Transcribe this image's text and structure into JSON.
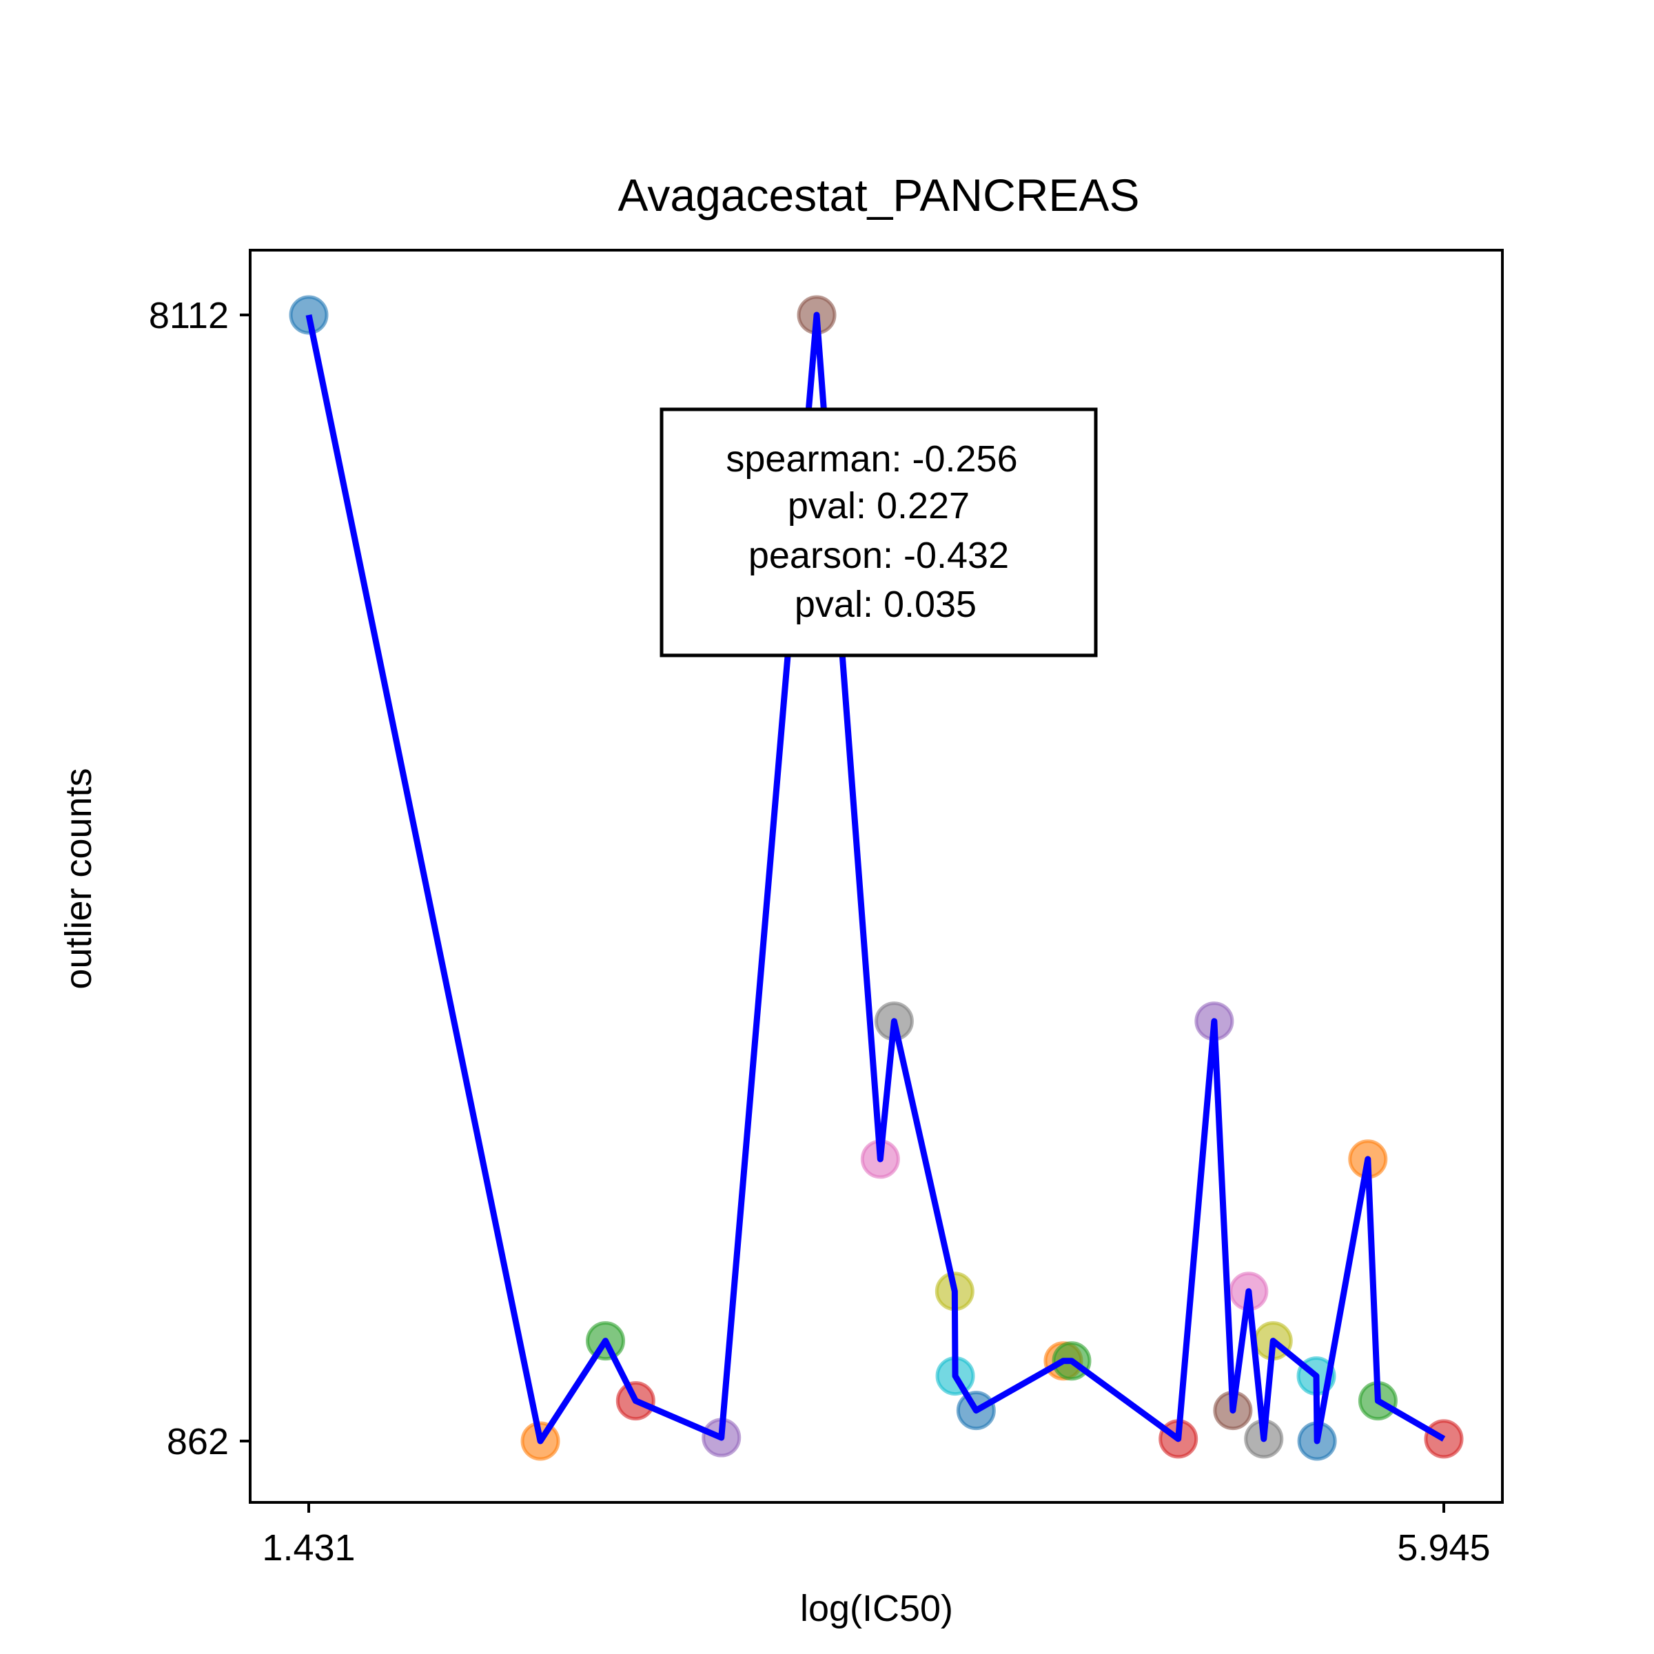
{
  "chart_data": {
    "type": "scatter",
    "title": "Avagacestat_PANCREAS",
    "xlabel": "log(IC50)",
    "ylabel": "outlier counts",
    "xlim": [
      1.431,
      5.945
    ],
    "ylim": [
      862,
      8112
    ],
    "x_ticks": [
      "1.431",
      "5.945"
    ],
    "y_ticks": [
      "862",
      "8112"
    ],
    "grid": false,
    "line_color": "#0000ff",
    "stats": {
      "lines": [
        "spearman: -0.256",
        "pval: 0.227",
        "pearson: -0.432",
        "pval: 0.035"
      ]
    },
    "points": [
      {
        "x": 1.431,
        "y": 8112,
        "color": "#1f77b4"
      },
      {
        "x": 2.352,
        "y": 862,
        "color": "#ff7f0e"
      },
      {
        "x": 2.611,
        "y": 1507,
        "color": "#2ca02c"
      },
      {
        "x": 2.731,
        "y": 1121,
        "color": "#d62728"
      },
      {
        "x": 3.072,
        "y": 884,
        "color": "#9467bd"
      },
      {
        "x": 3.451,
        "y": 8112,
        "color": "#8c564b"
      },
      {
        "x": 3.704,
        "y": 2677,
        "color": "#e377c2"
      },
      {
        "x": 3.759,
        "y": 3565,
        "color": "#7f7f7f"
      },
      {
        "x": 4.0,
        "y": 1826,
        "color": "#bcbd22"
      },
      {
        "x": 4.002,
        "y": 1281,
        "color": "#17becf"
      },
      {
        "x": 4.085,
        "y": 1059,
        "color": "#1f77b4"
      },
      {
        "x": 4.432,
        "y": 1378,
        "color": "#ff7f0e"
      },
      {
        "x": 4.465,
        "y": 1378,
        "color": "#2ca02c"
      },
      {
        "x": 4.889,
        "y": 876,
        "color": "#d62728"
      },
      {
        "x": 5.032,
        "y": 3565,
        "color": "#9467bd"
      },
      {
        "x": 5.106,
        "y": 1059,
        "color": "#8c564b"
      },
      {
        "x": 5.169,
        "y": 1826,
        "color": "#e377c2"
      },
      {
        "x": 5.229,
        "y": 876,
        "color": "#7f7f7f"
      },
      {
        "x": 5.266,
        "y": 1507,
        "color": "#bcbd22"
      },
      {
        "x": 5.438,
        "y": 1281,
        "color": "#17becf"
      },
      {
        "x": 5.441,
        "y": 862,
        "color": "#1f77b4"
      },
      {
        "x": 5.643,
        "y": 2677,
        "color": "#ff7f0e"
      },
      {
        "x": 5.683,
        "y": 1121,
        "color": "#2ca02c"
      },
      {
        "x": 5.945,
        "y": 876,
        "color": "#d62728"
      }
    ]
  }
}
